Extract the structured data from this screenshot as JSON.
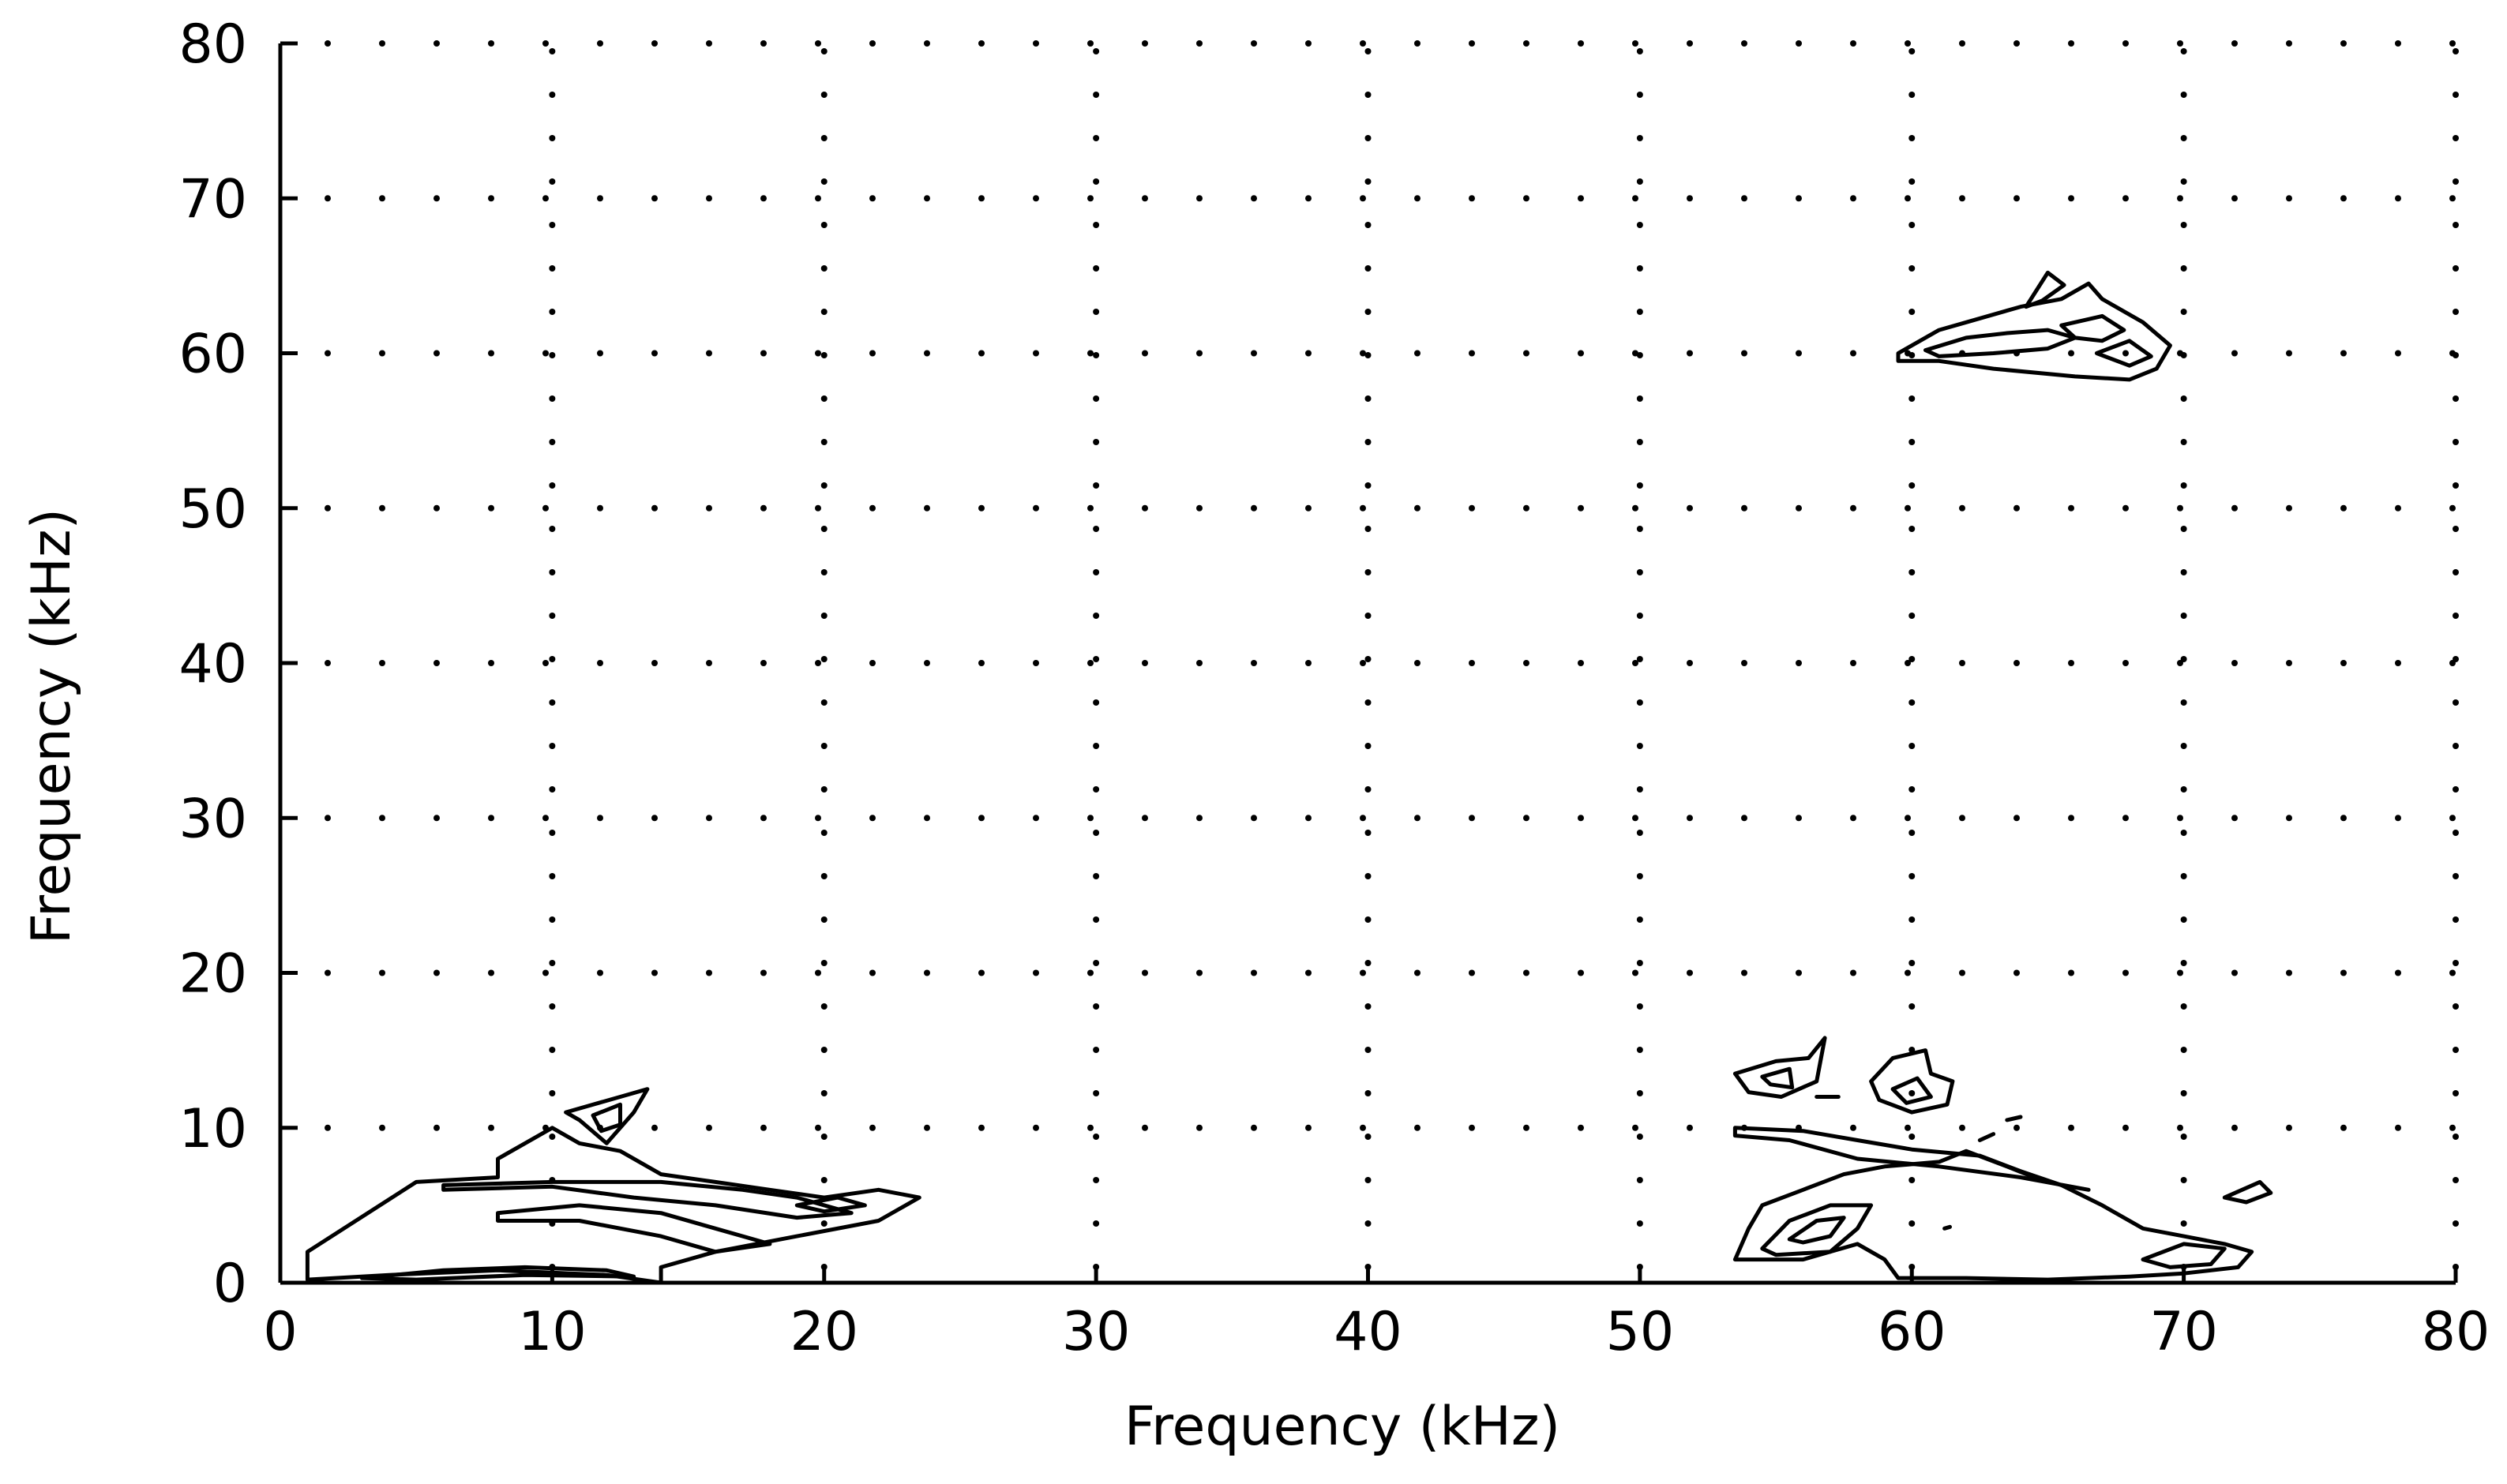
{
  "chart_data": {
    "type": "contour",
    "title": "",
    "xlabel": "Frequency (kHz)",
    "ylabel": "Frequency (kHz)",
    "xlim": [
      0,
      80
    ],
    "ylim": [
      0,
      80
    ],
    "xticks": [
      0,
      10,
      20,
      30,
      40,
      50,
      60,
      70,
      80
    ],
    "yticks": [
      0,
      10,
      20,
      30,
      40,
      50,
      60,
      70,
      80
    ],
    "grid": "dotted",
    "line_color": "#000000",
    "contours": [
      {
        "region": "low-left outer",
        "points": [
          [
            1,
            2
          ],
          [
            5,
            6.5
          ],
          [
            8,
            6.8
          ],
          [
            8,
            8
          ],
          [
            9,
            9
          ],
          [
            10,
            10
          ],
          [
            11,
            9
          ],
          [
            12.5,
            8.5
          ],
          [
            14,
            7
          ],
          [
            16,
            6.5
          ],
          [
            18,
            6
          ],
          [
            20,
            5.5
          ],
          [
            22,
            6
          ],
          [
            23.5,
            5.5
          ],
          [
            22,
            4
          ],
          [
            19,
            3
          ],
          [
            16,
            2
          ],
          [
            14,
            1
          ],
          [
            14,
            0
          ],
          [
            12,
            0.5
          ],
          [
            8,
            0.8
          ],
          [
            4,
            0.5
          ],
          [
            1,
            0.2
          ]
        ]
      },
      {
        "region": "low-left inner a",
        "points": [
          [
            6,
            6
          ],
          [
            10,
            6.2
          ],
          [
            13,
            5.5
          ],
          [
            16,
            5
          ],
          [
            19,
            4.2
          ],
          [
            21,
            4.5
          ],
          [
            19,
            5.5
          ],
          [
            17,
            6
          ],
          [
            14,
            6.5
          ],
          [
            10,
            6.5
          ],
          [
            6,
            6.3
          ]
        ]
      },
      {
        "region": "low-left inner b",
        "points": [
          [
            8,
            4.5
          ],
          [
            11,
            5
          ],
          [
            14,
            4.5
          ],
          [
            16,
            3.5
          ],
          [
            18,
            2.5
          ],
          [
            16,
            2
          ],
          [
            14,
            3
          ],
          [
            11,
            4
          ],
          [
            8,
            4
          ]
        ]
      },
      {
        "region": "low-left inner c",
        "points": [
          [
            19,
            5
          ],
          [
            20.5,
            5.5
          ],
          [
            21.5,
            5
          ],
          [
            20,
            4.6
          ]
        ]
      },
      {
        "region": "low-left bottom strip",
        "points": [
          [
            3,
            0.3
          ],
          [
            6,
            0.8
          ],
          [
            9,
            1
          ],
          [
            12,
            0.8
          ],
          [
            13,
            0.4
          ],
          [
            9,
            0.5
          ],
          [
            5,
            0.2
          ]
        ]
      },
      {
        "region": "low-left island",
        "points": [
          [
            10.5,
            11
          ],
          [
            12.5,
            12
          ],
          [
            13.5,
            12.5
          ],
          [
            13,
            11
          ],
          [
            12,
            9
          ],
          [
            11,
            10.5
          ]
        ]
      },
      {
        "region": "low-left island inner",
        "points": [
          [
            11.5,
            10.8
          ],
          [
            12.5,
            11.5
          ],
          [
            12.5,
            10.2
          ],
          [
            11.8,
            9.8
          ]
        ]
      },
      {
        "region": "top-right outer",
        "points": [
          [
            59.5,
            60
          ],
          [
            61,
            61.5
          ],
          [
            62,
            62
          ],
          [
            64,
            63
          ],
          [
            65.5,
            63.5
          ],
          [
            66.5,
            64.5
          ],
          [
            67,
            63.5
          ],
          [
            68.5,
            62
          ],
          [
            69.5,
            60.5
          ],
          [
            69,
            59
          ],
          [
            68,
            58.3
          ],
          [
            66,
            58.5
          ],
          [
            63,
            59
          ],
          [
            61,
            59.5
          ],
          [
            59.5,
            59.5
          ]
        ]
      },
      {
        "region": "top-right inner a",
        "points": [
          [
            60.5,
            60.2
          ],
          [
            62,
            61
          ],
          [
            63.5,
            61.3
          ],
          [
            65,
            61.5
          ],
          [
            66,
            61
          ],
          [
            65,
            60.3
          ],
          [
            63,
            60
          ],
          [
            61,
            59.8
          ]
        ]
      },
      {
        "region": "top-right inner b",
        "points": [
          [
            65.5,
            61.8
          ],
          [
            67,
            62.4
          ],
          [
            67.8,
            61.5
          ],
          [
            67,
            60.8
          ],
          [
            66,
            61
          ]
        ]
      },
      {
        "region": "top-right inner c",
        "points": [
          [
            66.8,
            60
          ],
          [
            68,
            60.8
          ],
          [
            68.8,
            59.8
          ],
          [
            68,
            59.2
          ]
        ]
      },
      {
        "region": "top-right spike",
        "points": [
          [
            64.2,
            63
          ],
          [
            65,
            65.2
          ],
          [
            65.6,
            64.4
          ],
          [
            64.8,
            63.4
          ]
        ]
      },
      {
        "region": "bottom-right outer",
        "points": [
          [
            53.5,
            1.5
          ],
          [
            54,
            3.5
          ],
          [
            54.5,
            5
          ],
          [
            56,
            6
          ],
          [
            57.5,
            7
          ],
          [
            59,
            7.5
          ],
          [
            61,
            7.8
          ],
          [
            62,
            8.5
          ],
          [
            63.5,
            7.5
          ],
          [
            64.5,
            6.8
          ],
          [
            65.5,
            6.3
          ],
          [
            67,
            5
          ],
          [
            68.5,
            3.5
          ],
          [
            70,
            3
          ],
          [
            71.5,
            2.5
          ],
          [
            72.5,
            2
          ],
          [
            72,
            1
          ],
          [
            70,
            0.6
          ],
          [
            68,
            0.4
          ],
          [
            65,
            0.2
          ],
          [
            62,
            0.3
          ],
          [
            59.5,
            0.3
          ],
          [
            59,
            1.5
          ],
          [
            58,
            2.5
          ],
          [
            56,
            1.5
          ]
        ]
      },
      {
        "region": "bottom-right inner a",
        "points": [
          [
            54.5,
            2.2
          ],
          [
            55.5,
            4
          ],
          [
            57,
            5
          ],
          [
            58.5,
            5
          ],
          [
            58,
            3.5
          ],
          [
            57,
            2
          ],
          [
            55,
            1.8
          ]
        ]
      },
      {
        "region": "bottom-right inner b",
        "points": [
          [
            55.5,
            2.8
          ],
          [
            56.5,
            4
          ],
          [
            57.5,
            4.2
          ],
          [
            57,
            3
          ],
          [
            56,
            2.6
          ]
        ]
      },
      {
        "region": "bottom-right inner c",
        "points": [
          [
            68.5,
            1.5
          ],
          [
            70,
            2.5
          ],
          [
            71.5,
            2.2
          ],
          [
            71,
            1.2
          ],
          [
            69.5,
            1
          ]
        ]
      },
      {
        "region": "bottom-right upper band",
        "points": [
          [
            53.5,
            10
          ],
          [
            56,
            9.8
          ],
          [
            58,
            9.2
          ],
          [
            60,
            8.6
          ],
          [
            62.5,
            8.2
          ],
          [
            64,
            7.2
          ],
          [
            65.5,
            6.3
          ],
          [
            66.5,
            6
          ],
          [
            64,
            6.8
          ],
          [
            61,
            7.5
          ],
          [
            58,
            8
          ],
          [
            55.5,
            9.2
          ],
          [
            53.5,
            9.5
          ]
        ]
      },
      {
        "region": "bottom-right island a",
        "points": [
          [
            53.5,
            13.5
          ],
          [
            55,
            14.3
          ],
          [
            56.2,
            14.5
          ],
          [
            56.8,
            15.8
          ],
          [
            56.5,
            13
          ],
          [
            55.2,
            12
          ],
          [
            54,
            12.3
          ]
        ]
      },
      {
        "region": "bottom-right island a inner",
        "points": [
          [
            54.5,
            13.3
          ],
          [
            55.5,
            13.8
          ],
          [
            55.6,
            12.6
          ],
          [
            54.8,
            12.8
          ]
        ]
      },
      {
        "region": "bottom-right island b",
        "points": [
          [
            58.5,
            13
          ],
          [
            59.3,
            14.5
          ],
          [
            60.5,
            15
          ],
          [
            60.7,
            13.5
          ],
          [
            61.5,
            13
          ],
          [
            61.3,
            11.5
          ],
          [
            60,
            11
          ],
          [
            58.8,
            11.8
          ]
        ]
      },
      {
        "region": "bottom-right island b inner",
        "points": [
          [
            59.3,
            12.5
          ],
          [
            60.2,
            13.2
          ],
          [
            60.7,
            12
          ],
          [
            59.8,
            11.6
          ]
        ]
      },
      {
        "region": "bottom-right blob small",
        "points": [
          [
            71.5,
            5.5
          ],
          [
            72.8,
            6.5
          ],
          [
            73.2,
            5.8
          ],
          [
            72.3,
            5.2
          ]
        ]
      },
      {
        "region": "bottom-right dash a",
        "points": [
          [
            56.5,
            12
          ],
          [
            57.3,
            12
          ]
        ]
      },
      {
        "region": "bottom-right dash b",
        "points": [
          [
            63.5,
            10.5
          ],
          [
            64,
            10.7
          ]
        ]
      },
      {
        "region": "bottom-right dash c",
        "points": [
          [
            62.5,
            9.2
          ],
          [
            63,
            9.6
          ]
        ]
      },
      {
        "region": "bottom-right dot d",
        "points": [
          [
            61.2,
            3.5
          ],
          [
            61.4,
            3.6
          ]
        ]
      }
    ]
  }
}
